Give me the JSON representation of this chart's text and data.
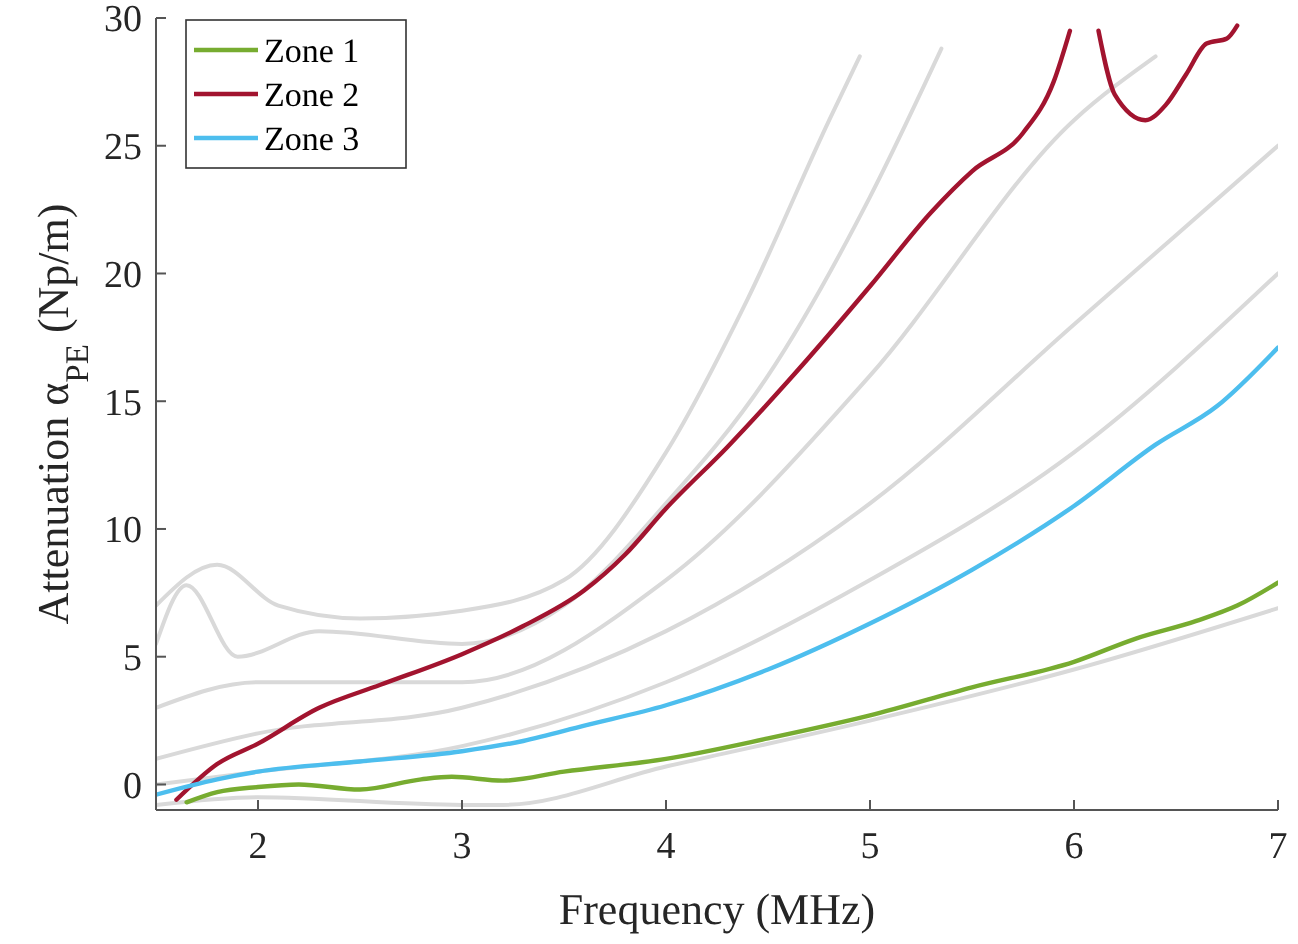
{
  "chart_data": {
    "type": "line",
    "xlabel": "Frequency (MHz)",
    "ylabel": "Attenuation α$_{PE}$ (Np/m)",
    "xlim": [
      1.5,
      7
    ],
    "ylim": [
      -1,
      30
    ],
    "xticks": [
      2,
      3,
      4,
      5,
      6,
      7
    ],
    "yticks": [
      0,
      5,
      10,
      15,
      20,
      25,
      30
    ],
    "grid": false,
    "legend": "top left",
    "marker": "none",
    "line_style": "solid",
    "series": [
      {
        "color": "#d9d9d9",
        "x": [
          1.5,
          1.8,
          2.1,
          2.5,
          3.0,
          3.5,
          4.0,
          4.4,
          4.8,
          4.95
        ],
        "values": [
          7,
          8.6,
          7.0,
          6.5,
          6.8,
          8,
          13,
          19,
          26,
          28.5
        ]
      },
      {
        "color": "#d9d9d9",
        "x": [
          1.5,
          1.65,
          1.9,
          2.3,
          3.0,
          3.5,
          4.0,
          4.5,
          5.0,
          5.35
        ],
        "values": [
          5.5,
          7.8,
          5,
          6,
          5.5,
          7,
          11,
          16,
          23,
          28.8
        ]
      },
      {
        "color": "#d9d9d9",
        "x": [
          1.5,
          2,
          3,
          4,
          5,
          6,
          6.4
        ],
        "values": [
          3,
          4,
          4,
          8,
          16,
          26,
          28.5
        ]
      },
      {
        "color": "#d9d9d9",
        "x": [
          1.5,
          2,
          3,
          4,
          5,
          6,
          7
        ],
        "values": [
          1,
          2,
          3,
          6,
          11,
          18,
          25
        ]
      },
      {
        "color": "#d9d9d9",
        "x": [
          1.5,
          2,
          3,
          4,
          5,
          6,
          7
        ],
        "values": [
          0,
          0.5,
          1.5,
          4,
          8,
          13,
          20
        ]
      },
      {
        "color": "#d9d9d9",
        "x": [
          1.5,
          2,
          3,
          3.2,
          4,
          5,
          6,
          7
        ],
        "values": [
          -0.8,
          -0.5,
          -0.8,
          -0.8,
          0.7,
          2.5,
          4.5,
          6.9
        ]
      },
      {
        "name": "Zone 1",
        "color": "#77ac30",
        "x": [
          1.65,
          1.8,
          2.0,
          2.2,
          2.5,
          2.8,
          2.95,
          3.2,
          3.5,
          4.0,
          4.5,
          5.0,
          5.5,
          6.0,
          6.3,
          6.6,
          6.8,
          7.0
        ],
        "values": [
          -0.7,
          -0.3,
          -0.1,
          0,
          -0.2,
          0.2,
          0.3,
          0.15,
          0.5,
          1.0,
          1.8,
          2.7,
          3.8,
          4.8,
          5.7,
          6.4,
          7.0,
          7.9
        ]
      },
      {
        "name": "Zone 2",
        "color": "#a2142f",
        "x": [
          1.6,
          1.8,
          2.0,
          2.3,
          2.6,
          3.0,
          3.3,
          3.6,
          3.8,
          4.0,
          4.3,
          4.6,
          5.0,
          5.3,
          5.5,
          5.75,
          5.9,
          5.98,
          6.05,
          6.12,
          6.2,
          6.35,
          6.45,
          6.55,
          6.65,
          6.75,
          6.8
        ],
        "values": [
          -0.6,
          0.8,
          1.6,
          3.0,
          3.9,
          5.1,
          6.2,
          7.6,
          9.0,
          10.8,
          13.2,
          15.8,
          19.5,
          22.4,
          24.0,
          25.5,
          27.5,
          29.5,
          null,
          29.5,
          27,
          26,
          26.6,
          27.8,
          29,
          29.2,
          29.7
        ]
      },
      {
        "name": "Zone 3",
        "color": "#4dbeee",
        "x": [
          1.5,
          1.8,
          2.0,
          2.5,
          3.0,
          3.3,
          3.6,
          4.0,
          4.5,
          5.0,
          5.5,
          6.0,
          6.4,
          6.7,
          7.0
        ],
        "values": [
          -0.4,
          0.2,
          0.5,
          0.9,
          1.3,
          1.7,
          2.3,
          3.1,
          4.5,
          6.3,
          8.4,
          10.9,
          13.3,
          14.8,
          17.1
        ]
      }
    ]
  }
}
